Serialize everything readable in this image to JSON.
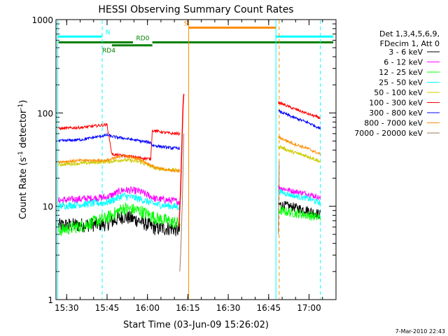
{
  "chart_data": {
    "type": "line",
    "title": "HESSI Observing Summary Count Rates",
    "xlabel": "Start Time (03-Jun-09 15:26:02)",
    "ylabel_main": "Count Rate (s",
    "ylabel_sup1": "-1",
    "ylabel_mid": " detector",
    "ylabel_sup2": "-1",
    "ylabel_end": ")",
    "footer": "7-Mar-2010 22:43",
    "yscale": "log",
    "ylim": [
      1,
      1000
    ],
    "xlim": [
      15.4339,
      17.1667
    ],
    "x_unit": "hours (UT)",
    "x_ticks": [
      {
        "label": "15:30",
        "x": 15.5
      },
      {
        "label": "15:45",
        "x": 15.75
      },
      {
        "label": "16:00",
        "x": 16.0
      },
      {
        "label": "16:15",
        "x": 16.25
      },
      {
        "label": "16:30",
        "x": 16.5
      },
      {
        "label": "16:45",
        "x": 16.75
      },
      {
        "label": "17:00",
        "x": 17.0
      }
    ],
    "y_ticks": [
      {
        "label": "1",
        "y": 1
      },
      {
        "label": "10",
        "y": 10
      },
      {
        "label": "100",
        "y": 100
      },
      {
        "label": "1000",
        "y": 1000
      }
    ],
    "legend": {
      "header": [
        "Det 1,3,4,5,6,9,",
        "FDecim 1, Att 0"
      ],
      "placement": "right"
    },
    "series": [
      {
        "name": "3 - 6 keV",
        "color": "#000000",
        "segments": [
          {
            "x": [
              15.45,
              15.6,
              15.75,
              15.85,
              15.95,
              16.05,
              16.15,
              16.2
            ],
            "y": [
              6.2,
              6.3,
              6.5,
              7.8,
              7.0,
              5.8,
              5.8,
              5.5
            ],
            "noise": 0.08
          },
          {
            "x": [
              16.81,
              16.9,
              17.0,
              17.07
            ],
            "y": [
              10.5,
              9.8,
              9.0,
              8.2
            ],
            "noise": 0.05
          }
        ]
      },
      {
        "name": "6 - 12 keV",
        "color": "#ff00ff",
        "segments": [
          {
            "x": [
              15.45,
              15.6,
              15.75,
              15.85,
              15.95,
              16.05,
              16.15,
              16.2
            ],
            "y": [
              11.5,
              12.0,
              12.5,
              15.0,
              14.5,
              12.0,
              11.5,
              11.2
            ],
            "noise": 0.04
          },
          {
            "x": [
              16.81,
              16.9,
              17.0,
              17.07
            ],
            "y": [
              16.0,
              14.5,
              13.5,
              12.2
            ],
            "noise": 0.03
          }
        ]
      },
      {
        "name": "12 - 25 keV",
        "color": "#00ff00",
        "segments": [
          {
            "x": [
              15.45,
              15.6,
              15.75,
              15.85,
              15.95,
              16.05,
              16.15,
              16.2
            ],
            "y": [
              5.5,
              6.2,
              7.5,
              9.5,
              9.0,
              7.5,
              6.8,
              6.5
            ],
            "noise": 0.07
          },
          {
            "x": [
              16.81,
              16.9,
              17.0,
              17.07
            ],
            "y": [
              9.0,
              8.5,
              8.0,
              7.5
            ],
            "noise": 0.05
          }
        ]
      },
      {
        "name": "25 - 50 keV",
        "color": "#00ffff",
        "segments": [
          {
            "x": [
              15.45,
              15.6,
              15.75,
              15.85,
              15.95,
              16.05,
              16.15,
              16.2
            ],
            "y": [
              10.0,
              10.5,
              11.0,
              13.0,
              12.0,
              10.5,
              10.0,
              9.8
            ],
            "noise": 0.04
          },
          {
            "x": [
              16.81,
              16.9,
              17.0,
              17.07
            ],
            "y": [
              14.5,
              13.0,
              12.0,
              10.8
            ],
            "noise": 0.03
          }
        ]
      },
      {
        "name": "50 - 100 keV",
        "color": "#cccc00",
        "segments": [
          {
            "x": [
              15.45,
              15.6,
              15.75,
              15.85,
              15.95,
              16.05,
              16.15,
              16.2
            ],
            "y": [
              28.0,
              29.0,
              30.0,
              31.5,
              30.0,
              25.5,
              24.5,
              24.0
            ],
            "noise": 0.02
          },
          {
            "x": [
              16.81,
              16.9,
              17.0,
              17.07
            ],
            "y": [
              44.0,
              38.0,
              34.0,
              30.0
            ],
            "noise": 0.02
          }
        ]
      },
      {
        "name": "100 - 300 keV",
        "color": "#ff0000",
        "segments": [
          {
            "x": [
              15.45,
              15.6,
              15.75,
              15.78,
              15.9,
              16.02,
              16.03,
              16.15,
              16.2
            ],
            "y": [
              68.0,
              70.0,
              75.0,
              36.0,
              34.0,
              32.0,
              65.0,
              60.0,
              60.0
            ],
            "noise": 0.015
          },
          {
            "x": [
              16.81,
              16.9,
              17.0,
              17.07
            ],
            "y": [
              130.0,
              112.0,
              97.0,
              88.0
            ],
            "noise": 0.015
          }
        ]
      },
      {
        "name": "300 - 800 keV",
        "color": "#0000ff",
        "segments": [
          {
            "x": [
              15.45,
              15.6,
              15.75,
              15.78,
              15.9,
              16.02,
              16.03,
              16.15,
              16.2
            ],
            "y": [
              50.0,
              52.0,
              58.0,
              56.0,
              52.0,
              48.0,
              45.0,
              42.0,
              42.0
            ],
            "noise": 0.015
          },
          {
            "x": [
              16.81,
              16.9,
              17.0,
              17.07
            ],
            "y": [
              105.0,
              90.0,
              78.0,
              68.0
            ],
            "noise": 0.015
          }
        ]
      },
      {
        "name": "800 - 7000 keV",
        "color": "#ff8c00",
        "segments": [
          {
            "x": [
              15.45,
              15.6,
              15.75,
              15.85,
              15.95,
              16.05,
              16.15,
              16.2
            ],
            "y": [
              30.0,
              31.0,
              31.0,
              35.0,
              32.0,
              26.0,
              24.0,
              24.0
            ],
            "noise": 0.015
          },
          {
            "x": [
              16.81,
              16.9,
              17.0,
              17.07
            ],
            "y": [
              55.0,
              47.0,
              41.0,
              36.0
            ],
            "noise": 0.015
          }
        ]
      },
      {
        "name": "7000 - 20000 keV",
        "color": "#a0785a",
        "segments": [
          {
            "x": [
              16.2,
              16.205,
              16.215,
              16.225
            ],
            "y": [
              2.0,
              3.0,
              10.0,
              60.0
            ],
            "noise": 0.0
          },
          {
            "x": [
              16.81,
              16.815
            ],
            "y": [
              5.0,
              30.0
            ],
            "noise": 0.0
          }
        ]
      }
    ],
    "flare_spike": {
      "x": [
        16.195,
        16.205,
        16.215,
        16.22,
        16.225
      ],
      "y": [
        6.0,
        15.0,
        60.0,
        120.0,
        160.0
      ],
      "color": "#ff0000"
    },
    "vertical_lines": [
      {
        "x": 15.445,
        "color": "#00ffff",
        "dashed": false
      },
      {
        "x": 15.72,
        "color": "#00ffff",
        "dashed": true
      },
      {
        "x": 16.255,
        "color": "#ff8c00",
        "dashed": false
      },
      {
        "x": 16.795,
        "color": "#00ffff",
        "dashed": false
      },
      {
        "x": 16.815,
        "color": "#ff8c00",
        "dashed": true
      },
      {
        "x": 17.07,
        "color": "#00ffff",
        "dashed": true
      }
    ],
    "attenuator_bars": [
      {
        "label": "N",
        "color": "#00ffff",
        "y": 658,
        "segments": [
          [
            15.445,
            15.72
          ],
          [
            16.795,
            17.15
          ]
        ],
        "label_x": 15.74
      },
      {
        "label": "S",
        "color": "#ff8c00",
        "y": 820,
        "segments": [
          [
            16.255,
            16.795
          ]
        ],
        "label_x": 16.225
      },
      {
        "label": "RD0",
        "color": "#008000",
        "y": 570,
        "segments": [
          [
            15.45,
            15.91
          ],
          [
            16.03,
            17.15
          ]
        ],
        "label_x": 15.93
      },
      {
        "label": "RD4",
        "color": "#008000",
        "y": 530,
        "segments": [
          [
            15.78,
            16.03
          ]
        ],
        "label_x": 15.72
      }
    ]
  }
}
